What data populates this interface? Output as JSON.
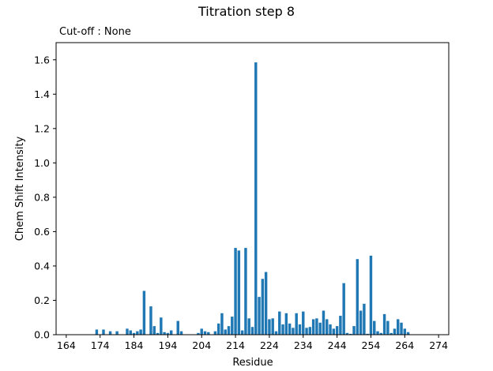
{
  "chart_data": {
    "type": "bar",
    "title": "Titration step 8",
    "subtitle": "Cut-off : None",
    "xlabel": "Residue",
    "ylabel": "Chem Shift Intensity",
    "xlim": [
      161,
      277
    ],
    "ylim": [
      0,
      1.7
    ],
    "xticks": [
      164,
      174,
      184,
      194,
      204,
      214,
      224,
      234,
      244,
      254,
      264,
      274
    ],
    "yticks": [
      0.0,
      0.2,
      0.4,
      0.6,
      0.8,
      1.0,
      1.2,
      1.4,
      1.6
    ],
    "ytick_labels": [
      "0.0",
      "0.2",
      "0.4",
      "0.6",
      "0.8",
      "1.0",
      "1.2",
      "1.4",
      "1.6"
    ],
    "bar_color": "#1f77b4",
    "grid": false,
    "x": [
      173,
      175,
      177,
      179,
      182,
      183,
      184,
      185,
      186,
      187,
      189,
      190,
      191,
      192,
      193,
      194,
      195,
      197,
      198,
      203,
      204,
      205,
      206,
      208,
      209,
      210,
      211,
      212,
      213,
      214,
      215,
      216,
      217,
      218,
      219,
      220,
      221,
      222,
      223,
      224,
      225,
      226,
      227,
      228,
      229,
      230,
      231,
      232,
      233,
      234,
      235,
      236,
      237,
      238,
      239,
      240,
      241,
      242,
      243,
      244,
      245,
      246,
      247,
      248,
      249,
      250,
      251,
      252,
      253,
      254,
      255,
      256,
      257,
      258,
      259,
      260,
      261,
      262,
      263,
      264,
      265,
      266,
      267,
      268,
      269,
      271
    ],
    "values": [
      0.03,
      0.03,
      0.02,
      0.02,
      0.035,
      0.025,
      0.01,
      0.02,
      0.03,
      0.255,
      0.165,
      0.05,
      0.01,
      0.1,
      0.015,
      0.01,
      0.025,
      0.08,
      0.02,
      0.01,
      0.035,
      0.02,
      0.015,
      0.02,
      0.065,
      0.125,
      0.03,
      0.05,
      0.105,
      0.505,
      0.49,
      0.025,
      0.505,
      0.095,
      0.045,
      1.585,
      0.22,
      0.325,
      0.365,
      0.09,
      0.095,
      0.02,
      0.135,
      0.06,
      0.125,
      0.065,
      0.04,
      0.125,
      0.06,
      0.135,
      0.04,
      0.045,
      0.09,
      0.095,
      0.07,
      0.14,
      0.09,
      0.06,
      0.035,
      0.05,
      0.11,
      0.3,
      0.01,
      0.005,
      0.05,
      0.44,
      0.14,
      0.18,
      0.005,
      0.46,
      0.08,
      0.02,
      0.01,
      0.12,
      0.08,
      0.01,
      0.035,
      0.09,
      0.07,
      0.035,
      0.015,
      0.0,
      0.0,
      0.0,
      0.0,
      0.0
    ]
  }
}
